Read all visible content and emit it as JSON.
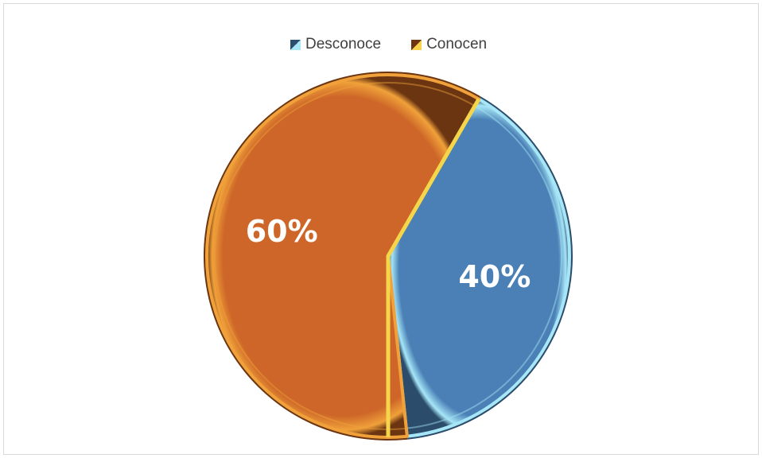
{
  "chart_data": {
    "type": "pie",
    "title": "",
    "legend_position": "top",
    "slices": [
      {
        "name": "Desconoce",
        "value": 40,
        "label": "40%",
        "color": "#4a80b6",
        "edge_color": "#a6e6f7",
        "dark_color": "#2b4c6b"
      },
      {
        "name": "Conocen",
        "value": 60,
        "label": "60%",
        "color": "#cd6628",
        "edge_color": "#f0a13a",
        "dark_color": "#6b3512"
      }
    ]
  }
}
